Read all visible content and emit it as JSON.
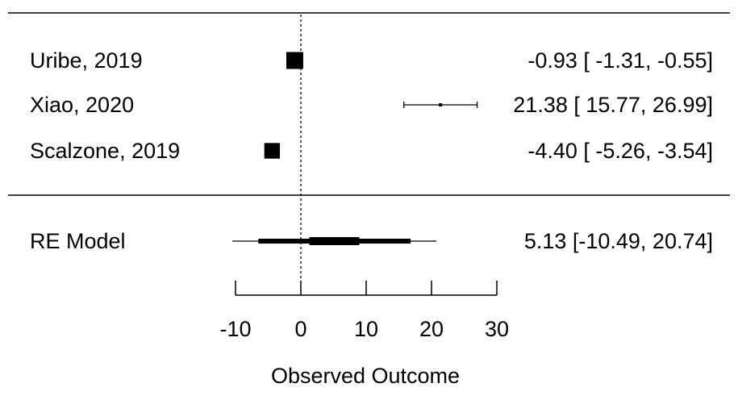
{
  "chart_data": {
    "type": "forest",
    "xlabel": "Observed Outcome",
    "xlim": [
      -10,
      30
    ],
    "xticks": [
      "-10",
      "0",
      "10",
      "20",
      "30"
    ],
    "reference_line": 0,
    "studies": [
      {
        "label": "Uribe, 2019",
        "estimate": -0.93,
        "ci_low": -1.31,
        "ci_high": -0.55,
        "text": "-0.93 [ -1.31, -0.55]",
        "weight": 1.0
      },
      {
        "label": "Xiao, 2020",
        "estimate": 21.38,
        "ci_low": 15.77,
        "ci_high": 26.99,
        "text": "21.38 [ 15.77, 26.99]",
        "weight": 0.16
      },
      {
        "label": "Scalzone, 2019",
        "estimate": -4.4,
        "ci_low": -5.26,
        "ci_high": -3.54,
        "text": "-4.40 [ -5.26, -3.54]",
        "weight": 0.92
      }
    ],
    "summary": {
      "label": "RE Model",
      "estimate": 5.13,
      "ci_low": -10.49,
      "ci_high": 20.74,
      "inner_low": -6.5,
      "inner_high": 16.8,
      "text": "5.13 [-10.49, 20.74]"
    }
  }
}
